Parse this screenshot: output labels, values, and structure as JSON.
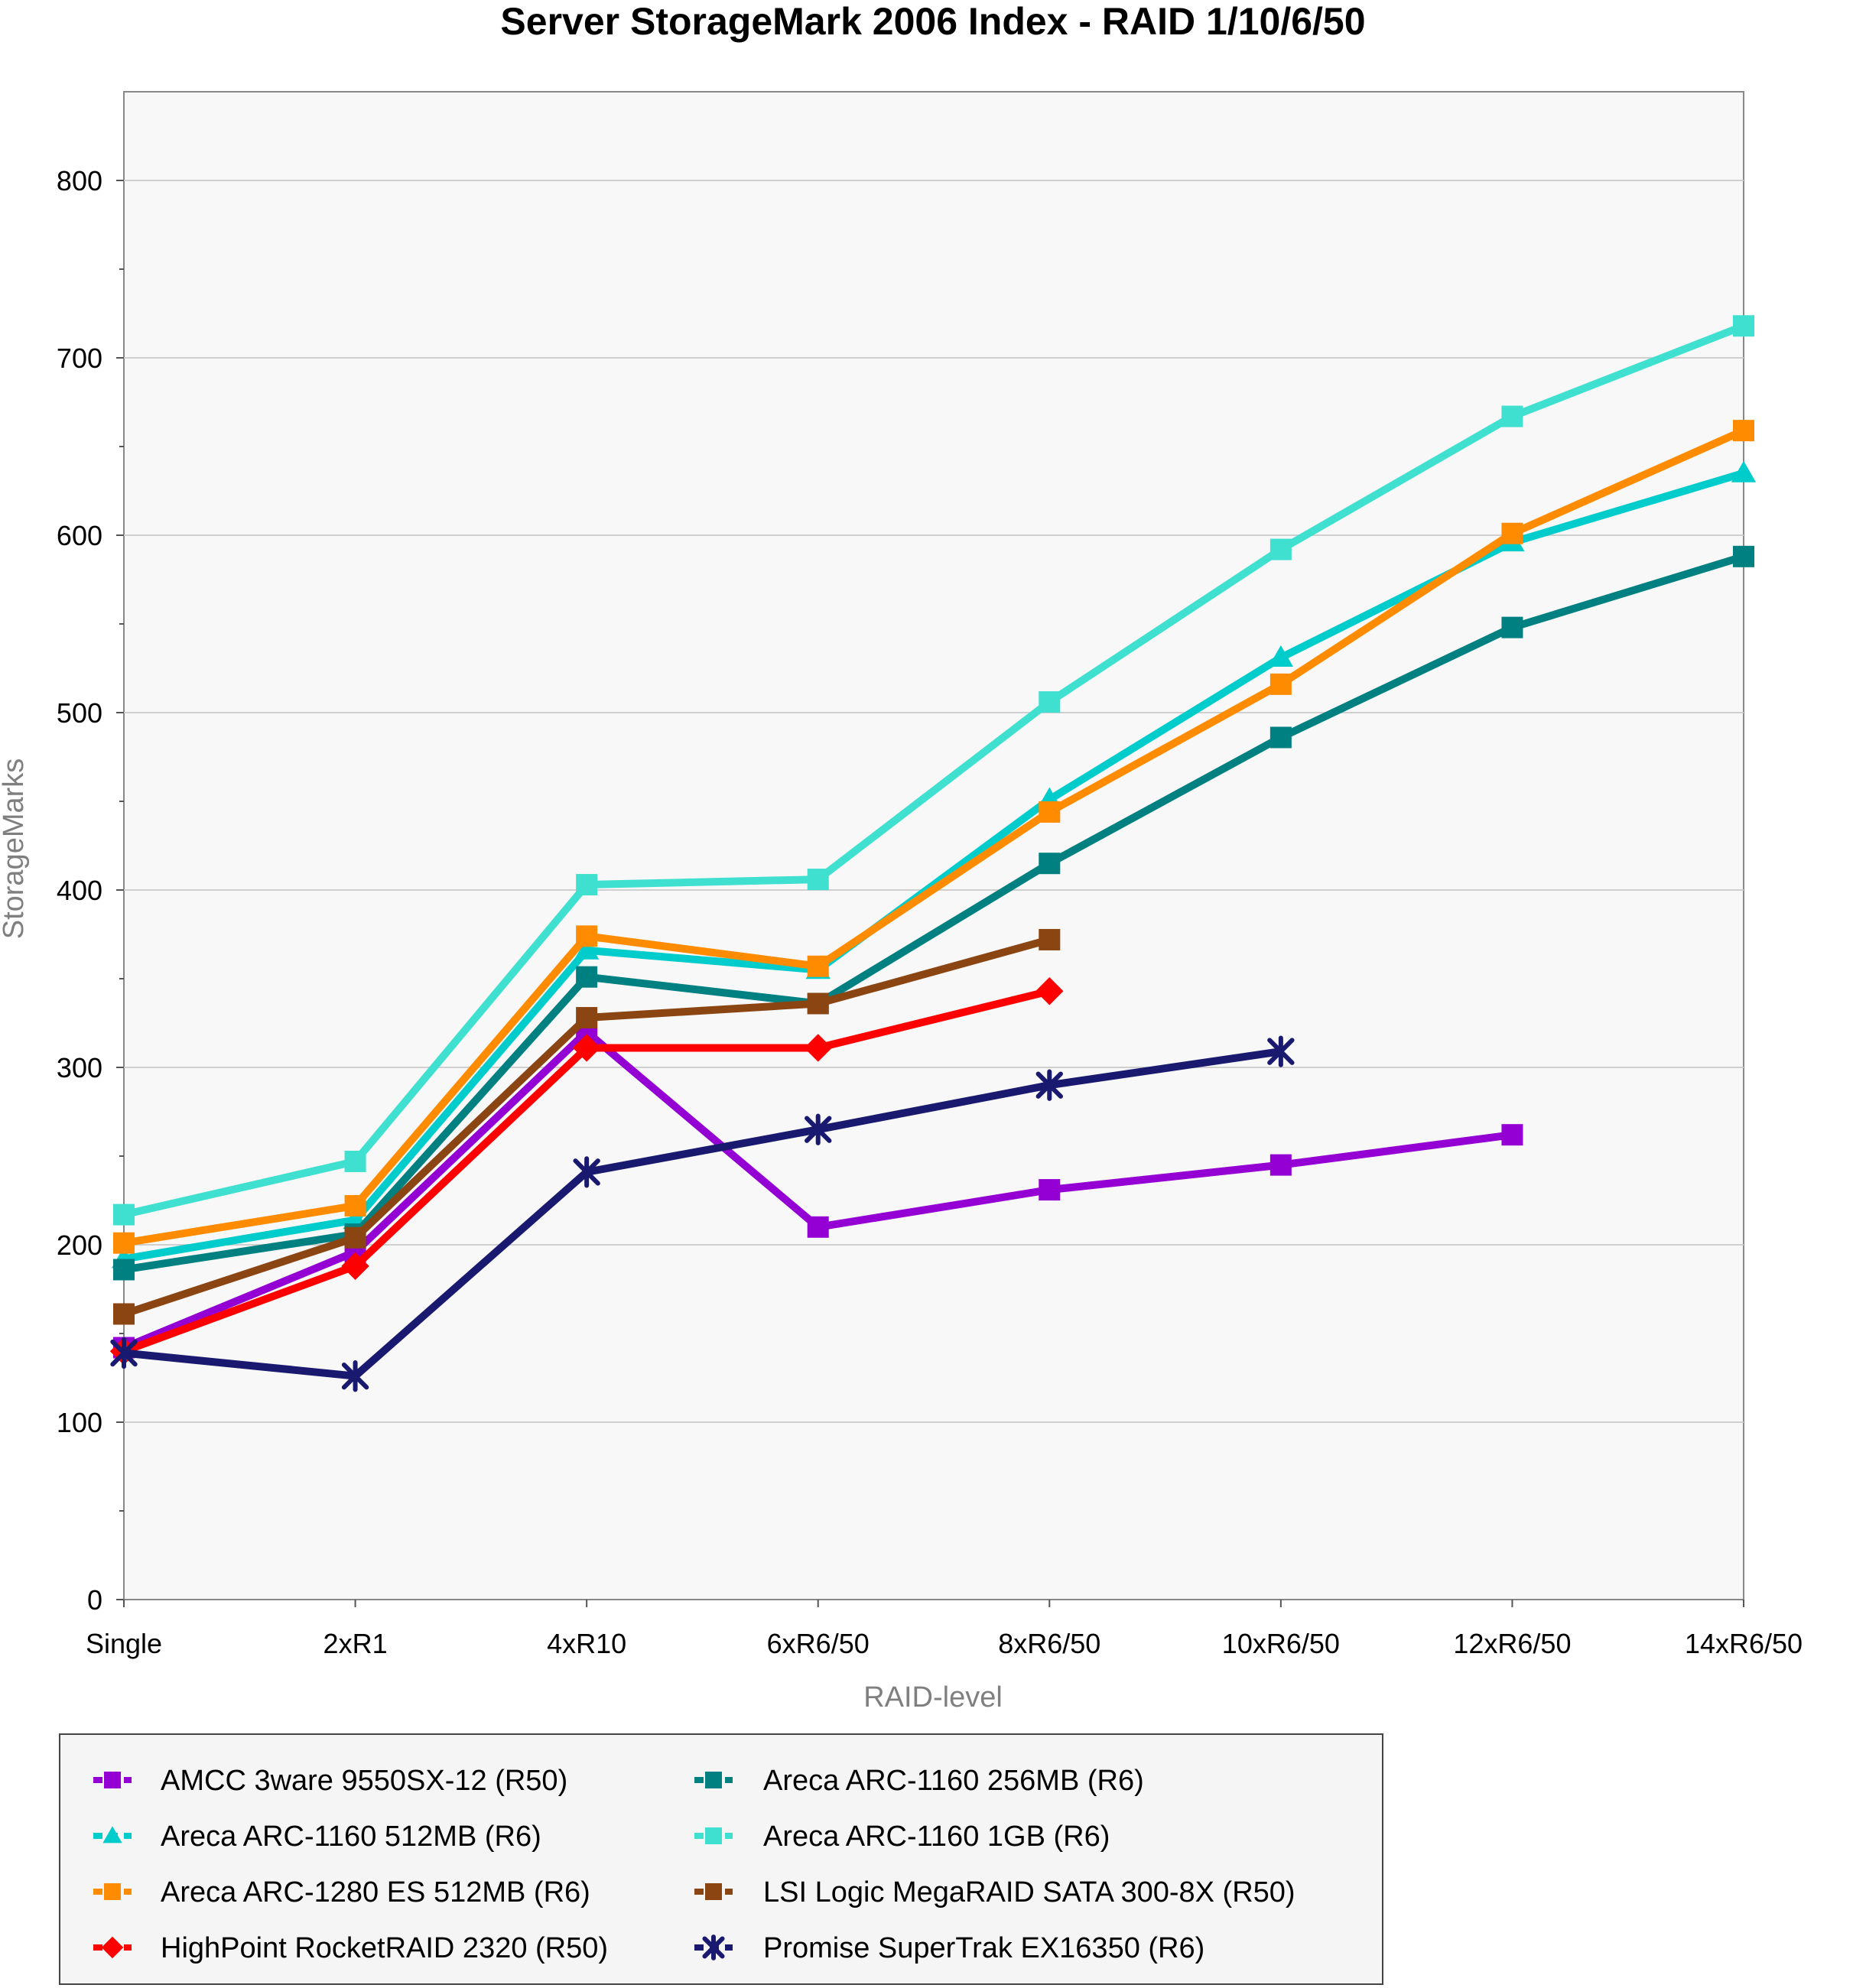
{
  "chart_data": {
    "type": "line",
    "title": "Server StorageMark 2006 Index -  RAID 1/10/6/50",
    "xlabel": "RAID-level",
    "ylabel": "StorageMarks",
    "ylim": [
      0,
      850
    ],
    "yticks": [
      0,
      100,
      200,
      300,
      400,
      500,
      600,
      700,
      800
    ],
    "categories": [
      "Single",
      "2xR1",
      "4xR10",
      "6xR6/50",
      "8xR6/50",
      "10xR6/50",
      "12xR6/50",
      "14xR6/50"
    ],
    "grid": true,
    "legend_position": "bottom",
    "series": [
      {
        "name": "AMCC 3ware 9550SX-12 (R50)",
        "color": "#9400d3",
        "marker": "square",
        "values": [
          142,
          196,
          320,
          210,
          231,
          245,
          262,
          null
        ]
      },
      {
        "name": "Areca ARC-1160 512MB (R6)",
        "color": "#00cccc",
        "marker": "triangle",
        "values": [
          192,
          214,
          366,
          355,
          451,
          531,
          596,
          635
        ]
      },
      {
        "name": "Areca ARC-1280 ES 512MB (R6)",
        "color": "#ff8c00",
        "marker": "square",
        "values": [
          201,
          222,
          374,
          357,
          444,
          516,
          601,
          659
        ]
      },
      {
        "name": "HighPoint RocketRAID 2320 (R50)",
        "color": "#ff0000",
        "marker": "diamond",
        "values": [
          140,
          188,
          311,
          311,
          343,
          null,
          null,
          null
        ]
      },
      {
        "name": "Areca ARC-1160 256MB  (R6)",
        "color": "#008080",
        "marker": "square",
        "values": [
          186,
          206,
          351,
          336,
          415,
          486,
          548,
          588
        ]
      },
      {
        "name": "Areca ARC-1160 1GB (R6)",
        "color": "#40e0d0",
        "marker": "square",
        "values": [
          217,
          247,
          403,
          406,
          506,
          592,
          667,
          718
        ]
      },
      {
        "name": "LSI Logic MegaRAID SATA 300-8X (R50)",
        "color": "#8b4513",
        "marker": "square",
        "values": [
          161,
          204,
          328,
          336,
          372,
          null,
          null,
          null
        ]
      },
      {
        "name": "Promise SuperTrak EX16350 (R6)",
        "color": "#191970",
        "marker": "x",
        "values": [
          139,
          126,
          241,
          265,
          290,
          309,
          null,
          null
        ]
      }
    ]
  }
}
